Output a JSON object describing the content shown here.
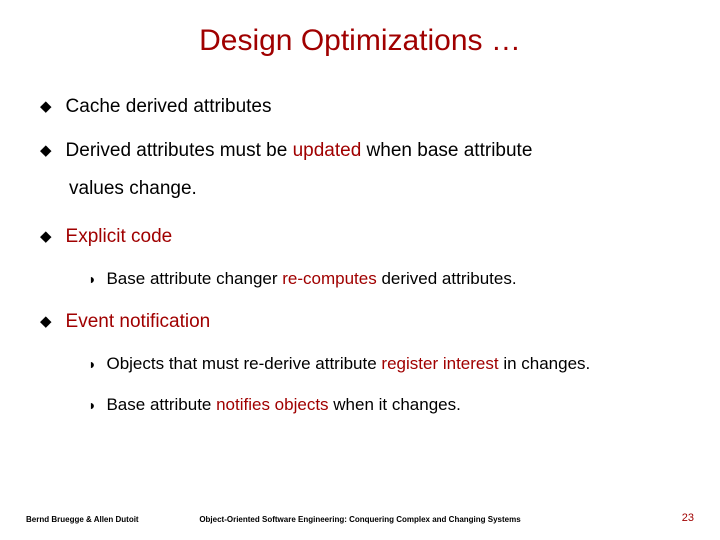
{
  "colors": {
    "title": "#a00000",
    "body": "#000000",
    "highlight": "#a00000",
    "pagenum": "#a00000",
    "background": "#ffffff"
  },
  "title": "Design Optimizations …",
  "bullets": {
    "b1": "Cache derived attributes",
    "b2a": "Derived attributes must be ",
    "b2b": "updated",
    "b2c": " when base attribute",
    "b2cont": "values change.",
    "b3": "Explicit code",
    "b3s1a": "Base attribute changer ",
    "b3s1b": "re-computes",
    "b3s1c": " derived attributes.",
    "b4": "Event notification",
    "b4s1a": "Objects that must re-derive attribute ",
    "b4s1b": "register interest",
    "b4s1c": " in changes.",
    "b4s2a": "Base attribute ",
    "b4s2b": "notifies objects",
    "b4s2c": " when it changes."
  },
  "footer": {
    "left": "Bernd Bruegge & Allen Dutoit",
    "center": "Object-Oriented Software Engineering: Conquering Complex and Changing Systems",
    "pagenum": "23"
  },
  "markers": {
    "l1": "◆",
    "l2": "◗"
  }
}
